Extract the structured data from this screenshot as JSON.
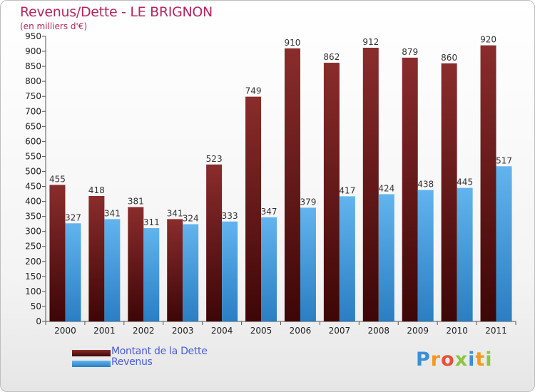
{
  "header": {
    "title": "Revenus/Dette - LE BRIGNON",
    "subtitle": "(en milliers d'€)"
  },
  "colors": {
    "dette_top": "#8a2c2c",
    "dette_bottom": "#3d0606",
    "revenus_top": "#62b4ee",
    "revenus_bottom": "#2a7ec2",
    "axis": "#555555",
    "grid": "#cccccc"
  },
  "chart_data": {
    "type": "bar",
    "title": "Revenus/Dette - LE BRIGNON",
    "ylabel": "(en milliers d'€)",
    "xlabel": "",
    "categories": [
      "2000",
      "2001",
      "2002",
      "2003",
      "2004",
      "2005",
      "2006",
      "2007",
      "2008",
      "2009",
      "2010",
      "2011"
    ],
    "series": [
      {
        "name": "Montant de la Dette",
        "values": [
          455,
          418,
          381,
          341,
          523,
          749,
          910,
          862,
          912,
          879,
          860,
          920
        ]
      },
      {
        "name": "Revenus",
        "values": [
          327,
          341,
          311,
          324,
          333,
          347,
          379,
          417,
          424,
          438,
          445,
          517
        ]
      }
    ],
    "ylim": [
      0,
      950
    ],
    "ytick_step": 50,
    "grid": false,
    "legend": "bottom-left"
  },
  "legend": {
    "items": [
      "Montant de la Dette",
      "Revenus"
    ]
  },
  "logo": {
    "letters": [
      "P",
      "r",
      "o",
      "x",
      "i",
      "t",
      "i"
    ],
    "colors": [
      "#3a8fd6",
      "#f29a1e",
      "#e8503a",
      "#8cc63f",
      "#3a8fd6",
      "#f29a1e",
      "#8cc63f"
    ]
  }
}
